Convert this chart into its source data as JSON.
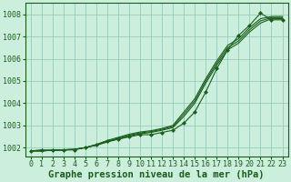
{
  "background_color": "#cceedd",
  "grid_color": "#99ccbb",
  "line_color": "#1a5e1a",
  "marker_color": "#1a5e1a",
  "xlabel": "Graphe pression niveau de la mer (hPa)",
  "xlabel_fontsize": 7.5,
  "tick_fontsize": 6,
  "xlim": [
    -0.5,
    23.5
  ],
  "ylim": [
    1001.6,
    1008.5
  ],
  "yticks": [
    1002,
    1003,
    1004,
    1005,
    1006,
    1007,
    1008
  ],
  "xticks": [
    0,
    1,
    2,
    3,
    4,
    5,
    6,
    7,
    8,
    9,
    10,
    11,
    12,
    13,
    14,
    15,
    16,
    17,
    18,
    19,
    20,
    21,
    22,
    23
  ],
  "series_smooth1": [
    1001.85,
    1001.85,
    1001.88,
    1001.9,
    1001.92,
    1002.0,
    1002.1,
    1002.25,
    1002.38,
    1002.52,
    1002.62,
    1002.68,
    1002.78,
    1002.9,
    1003.4,
    1004.0,
    1004.9,
    1005.7,
    1006.4,
    1006.7,
    1007.2,
    1007.6,
    1007.8,
    1007.8
  ],
  "series_smooth2": [
    1001.85,
    1001.85,
    1001.88,
    1001.9,
    1001.92,
    1002.0,
    1002.12,
    1002.28,
    1002.42,
    1002.56,
    1002.66,
    1002.72,
    1002.82,
    1002.95,
    1003.5,
    1004.1,
    1005.0,
    1005.8,
    1006.5,
    1006.8,
    1007.3,
    1007.7,
    1007.85,
    1007.85
  ],
  "series_smooth3": [
    1001.85,
    1001.85,
    1001.88,
    1001.9,
    1001.92,
    1002.0,
    1002.14,
    1002.32,
    1002.46,
    1002.6,
    1002.7,
    1002.76,
    1002.86,
    1003.0,
    1003.6,
    1004.2,
    1005.1,
    1005.9,
    1006.6,
    1006.9,
    1007.4,
    1007.8,
    1007.9,
    1007.9
  ],
  "series_markers": [
    1001.85,
    1001.9,
    1001.88,
    1001.88,
    1001.9,
    1002.0,
    1002.12,
    1002.28,
    1002.38,
    1002.48,
    1002.58,
    1002.58,
    1002.68,
    1002.78,
    1003.1,
    1003.6,
    1004.5,
    1005.55,
    1006.4,
    1007.05,
    1007.5,
    1008.05,
    1007.75,
    1007.75
  ],
  "figsize": [
    3.2,
    2.0
  ],
  "dpi": 100
}
